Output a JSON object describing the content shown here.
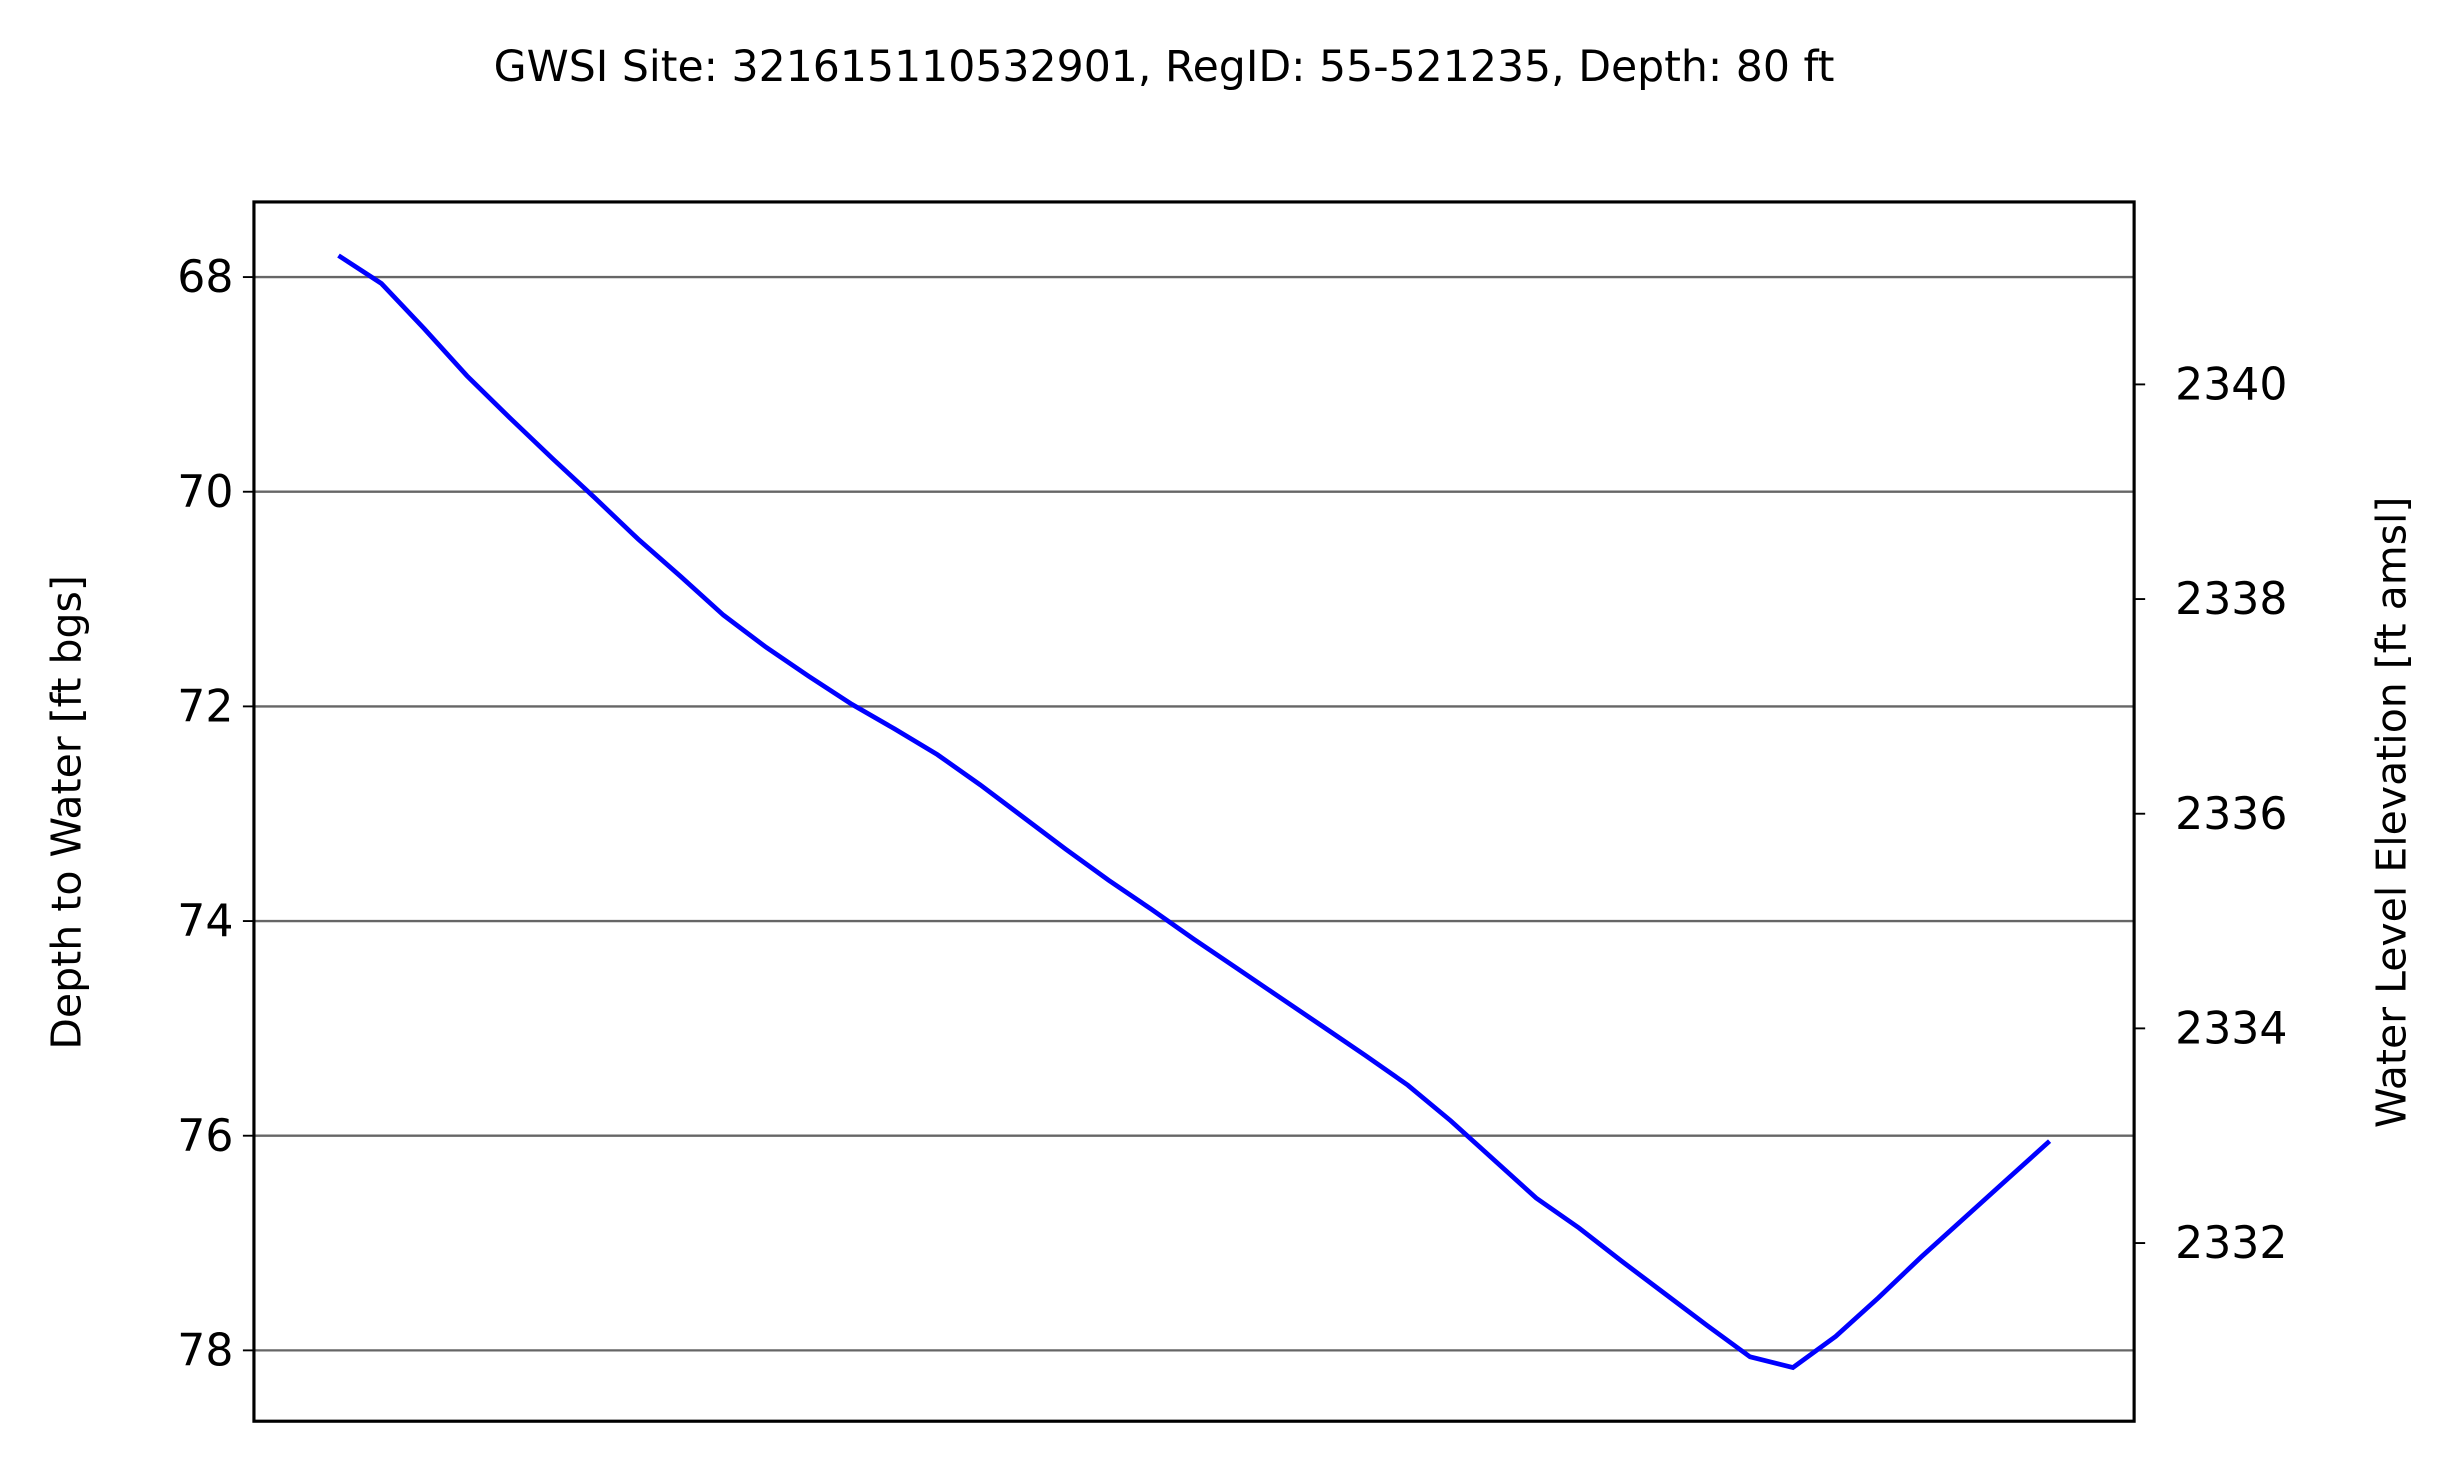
{
  "chart_data": {
    "type": "line",
    "title": "GWSI Site: 321615110532901, RegID: 55-521235, Depth: 80 ft",
    "ylabel": "Depth to Water [ft bgs]",
    "y2label": "Water Level Elevation [ft amsl]",
    "y2color": "#008000",
    "categories": [
      null,
      null,
      null,
      null,
      null,
      null,
      null,
      null,
      null,
      null,
      null,
      null,
      null,
      null,
      null,
      null,
      null,
      null,
      null,
      null,
      null,
      null,
      null,
      null,
      null,
      null,
      null,
      null,
      null,
      null,
      null,
      null,
      null,
      null,
      null,
      null,
      null,
      null,
      null,
      null,
      null
    ],
    "series": [
      {
        "name": "Depth to Water",
        "color": "#0000ff",
        "values": [
          67.8,
          68.06,
          68.48,
          68.92,
          69.31,
          69.69,
          70.06,
          70.44,
          70.79,
          71.15,
          71.45,
          71.72,
          71.98,
          72.21,
          72.45,
          72.73,
          73.03,
          73.33,
          73.62,
          73.89,
          74.17,
          74.44,
          74.71,
          74.98,
          75.25,
          75.53,
          75.86,
          76.22,
          76.58,
          76.86,
          77.17,
          77.47,
          77.77,
          78.06,
          78.16,
          77.87,
          77.51,
          77.13,
          76.77,
          76.41,
          76.05
        ]
      }
    ],
    "ylim": [
      67.3,
      78.66
    ],
    "yinverted": true,
    "yticks": [
      68,
      70,
      72,
      74,
      76,
      78
    ],
    "y2lim": [
      2341.7,
      2330.34
    ],
    "y2ticks": [
      2332,
      2334,
      2336,
      2338,
      2340
    ],
    "grid": true
  }
}
